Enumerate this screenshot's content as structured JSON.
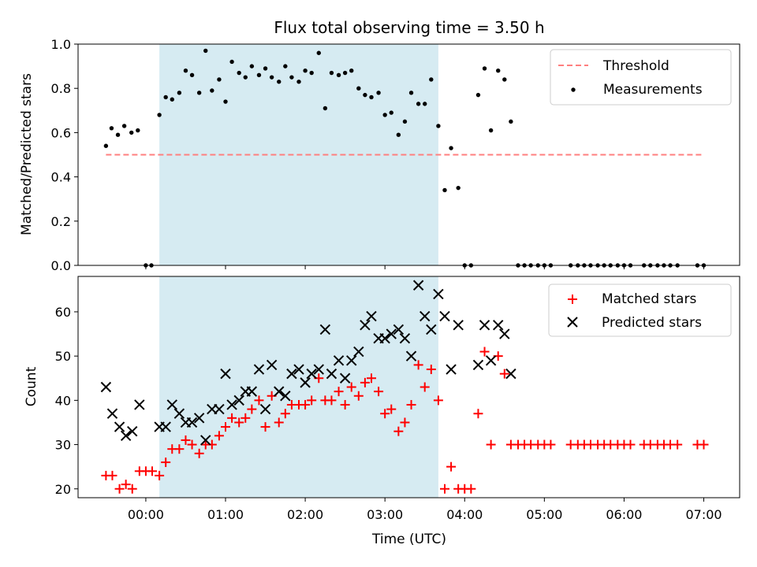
{
  "chart_data": [
    {
      "panel": "top",
      "type": "scatter",
      "title": "Flux total observing time = 3.50 h",
      "ylabel": "Matched/Predicted stars",
      "xlabel": "",
      "ylim": [
        0,
        1.0
      ],
      "yticks": [
        "0.0",
        "0.2",
        "0.4",
        "0.6",
        "0.8",
        "1.0"
      ],
      "yticks_values": [
        0,
        0.2,
        0.4,
        0.6,
        0.8,
        1.0
      ],
      "xlim_hours": [
        -0.85,
        7.45
      ],
      "shaded_span_hours": [
        0.17,
        3.67
      ],
      "shaded_color": "#add8e6",
      "legend_position": "top-right",
      "threshold": {
        "name": "Threshold",
        "value": 0.5,
        "x_hours": [
          -0.5,
          7.0
        ],
        "color": "#ff7f7f",
        "style": "dashed"
      },
      "series": [
        {
          "name": "Measurements",
          "color": "#000000",
          "marker": "dot",
          "x_hours": [
            -0.5,
            -0.43,
            -0.35,
            -0.27,
            -0.18,
            -0.1,
            0.0,
            0.07,
            0.17,
            0.25,
            0.33,
            0.42,
            0.5,
            0.58,
            0.67,
            0.75,
            0.83,
            0.92,
            1.0,
            1.08,
            1.17,
            1.25,
            1.33,
            1.42,
            1.5,
            1.58,
            1.67,
            1.75,
            1.83,
            1.92,
            2.0,
            2.08,
            2.17,
            2.25,
            2.33,
            2.42,
            2.5,
            2.58,
            2.67,
            2.75,
            2.83,
            2.92,
            3.0,
            3.08,
            3.17,
            3.25,
            3.33,
            3.42,
            3.5,
            3.58,
            3.67,
            3.75,
            3.83,
            3.92,
            4.0,
            4.08,
            4.17,
            4.25,
            4.33,
            4.42,
            4.5,
            4.58,
            4.67,
            4.75,
            4.83,
            4.92,
            5.0,
            5.08,
            5.33,
            5.42,
            5.5,
            5.58,
            5.67,
            5.75,
            5.83,
            5.92,
            6.0,
            6.08,
            6.25,
            6.33,
            6.42,
            6.5,
            6.58,
            6.67,
            6.92,
            7.0
          ],
          "y": [
            0.54,
            0.62,
            0.59,
            0.63,
            0.6,
            0.61,
            0.0,
            0.0,
            0.68,
            0.76,
            0.75,
            0.78,
            0.88,
            0.86,
            0.78,
            0.97,
            0.79,
            0.84,
            0.74,
            0.92,
            0.87,
            0.85,
            0.9,
            0.86,
            0.89,
            0.85,
            0.83,
            0.9,
            0.85,
            0.83,
            0.88,
            0.87,
            0.96,
            0.71,
            0.87,
            0.86,
            0.87,
            0.88,
            0.8,
            0.77,
            0.76,
            0.78,
            0.68,
            0.69,
            0.59,
            0.65,
            0.78,
            0.73,
            0.73,
            0.84,
            0.63,
            0.34,
            0.53,
            0.35,
            0.0,
            0.0,
            0.77,
            0.89,
            0.61,
            0.88,
            0.84,
            0.65,
            0.0,
            0.0,
            0.0,
            0.0,
            0.0,
            0.0,
            0.0,
            0.0,
            0.0,
            0.0,
            0.0,
            0.0,
            0.0,
            0.0,
            0.0,
            0.0,
            0.0,
            0.0,
            0.0,
            0.0,
            0.0,
            0.0,
            0.0,
            0.0
          ]
        }
      ]
    },
    {
      "panel": "bottom",
      "type": "scatter",
      "title": "",
      "ylabel": "Count",
      "xlabel": "Time (UTC)",
      "ylim": [
        18,
        68
      ],
      "yticks": [
        "20",
        "30",
        "40",
        "50",
        "60"
      ],
      "yticks_values": [
        20,
        30,
        40,
        50,
        60
      ],
      "xticks": [
        "00:00",
        "01:00",
        "02:00",
        "03:00",
        "04:00",
        "05:00",
        "06:00",
        "07:00"
      ],
      "xticks_values": [
        0,
        1,
        2,
        3,
        4,
        5,
        6,
        7
      ],
      "xlim_hours": [
        -0.85,
        7.45
      ],
      "shaded_span_hours": [
        0.17,
        3.67
      ],
      "shaded_color": "#add8e6",
      "legend_position": "top-right",
      "series": [
        {
          "name": "Matched stars",
          "color": "#ff0000",
          "marker": "plus",
          "x_hours": [
            -0.5,
            -0.42,
            -0.33,
            -0.25,
            -0.17,
            -0.08,
            0.0,
            0.08,
            0.17,
            0.25,
            0.33,
            0.42,
            0.5,
            0.58,
            0.67,
            0.75,
            0.83,
            0.92,
            1.0,
            1.08,
            1.17,
            1.25,
            1.33,
            1.42,
            1.5,
            1.58,
            1.67,
            1.75,
            1.83,
            1.92,
            2.0,
            2.08,
            2.17,
            2.25,
            2.33,
            2.42,
            2.5,
            2.58,
            2.67,
            2.75,
            2.83,
            2.92,
            3.0,
            3.08,
            3.17,
            3.25,
            3.33,
            3.42,
            3.5,
            3.58,
            3.67,
            3.75,
            3.83,
            3.92,
            4.0,
            4.08,
            4.17,
            4.25,
            4.33,
            4.42,
            4.5,
            4.58,
            4.67,
            4.75,
            4.83,
            4.92,
            5.0,
            5.08,
            5.33,
            5.42,
            5.5,
            5.58,
            5.67,
            5.75,
            5.83,
            5.92,
            6.0,
            6.08,
            6.25,
            6.33,
            6.42,
            6.5,
            6.58,
            6.67,
            6.92,
            7.0
          ],
          "y": [
            23,
            23,
            20,
            21,
            20,
            24,
            24,
            24,
            23,
            26,
            29,
            29,
            31,
            30,
            28,
            30,
            30,
            32,
            34,
            36,
            35,
            36,
            38,
            40,
            34,
            41,
            35,
            37,
            39,
            39,
            39,
            40,
            45,
            40,
            40,
            42,
            39,
            43,
            41,
            44,
            45,
            42,
            37,
            38,
            33,
            35,
            39,
            48,
            43,
            47,
            40,
            20,
            25,
            20,
            20,
            20,
            37,
            51,
            30,
            50,
            46,
            30,
            30,
            30,
            30,
            30,
            30,
            30,
            30,
            30,
            30,
            30,
            30,
            30,
            30,
            30,
            30,
            30,
            30,
            30,
            30,
            30,
            30,
            30,
            30,
            30
          ]
        },
        {
          "name": "Predicted stars",
          "color": "#000000",
          "marker": "x",
          "x_hours": [
            -0.5,
            -0.42,
            -0.33,
            -0.25,
            -0.17,
            -0.08,
            0.17,
            0.25,
            0.33,
            0.42,
            0.5,
            0.58,
            0.67,
            0.75,
            0.83,
            0.92,
            1.0,
            1.08,
            1.17,
            1.25,
            1.33,
            1.42,
            1.5,
            1.58,
            1.67,
            1.75,
            1.83,
            1.92,
            2.0,
            2.08,
            2.17,
            2.25,
            2.33,
            2.42,
            2.5,
            2.58,
            2.67,
            2.75,
            2.83,
            2.92,
            3.0,
            3.08,
            3.17,
            3.25,
            3.33,
            3.42,
            3.5,
            3.58,
            3.67,
            3.75,
            3.83,
            3.92,
            4.17,
            4.25,
            4.33,
            4.42,
            4.5,
            4.58
          ],
          "y": [
            43,
            37,
            34,
            32,
            33,
            39,
            34,
            34,
            39,
            37,
            35,
            35,
            36,
            31,
            38,
            38,
            46,
            39,
            40,
            42,
            42,
            47,
            38,
            48,
            42,
            41,
            46,
            47,
            44,
            46,
            47,
            56,
            46,
            49,
            45,
            49,
            51,
            57,
            59,
            54,
            54,
            55,
            56,
            54,
            50,
            66,
            59,
            56,
            64,
            59,
            47,
            57,
            48,
            57,
            49,
            57,
            55,
            46
          ]
        }
      ]
    }
  ]
}
